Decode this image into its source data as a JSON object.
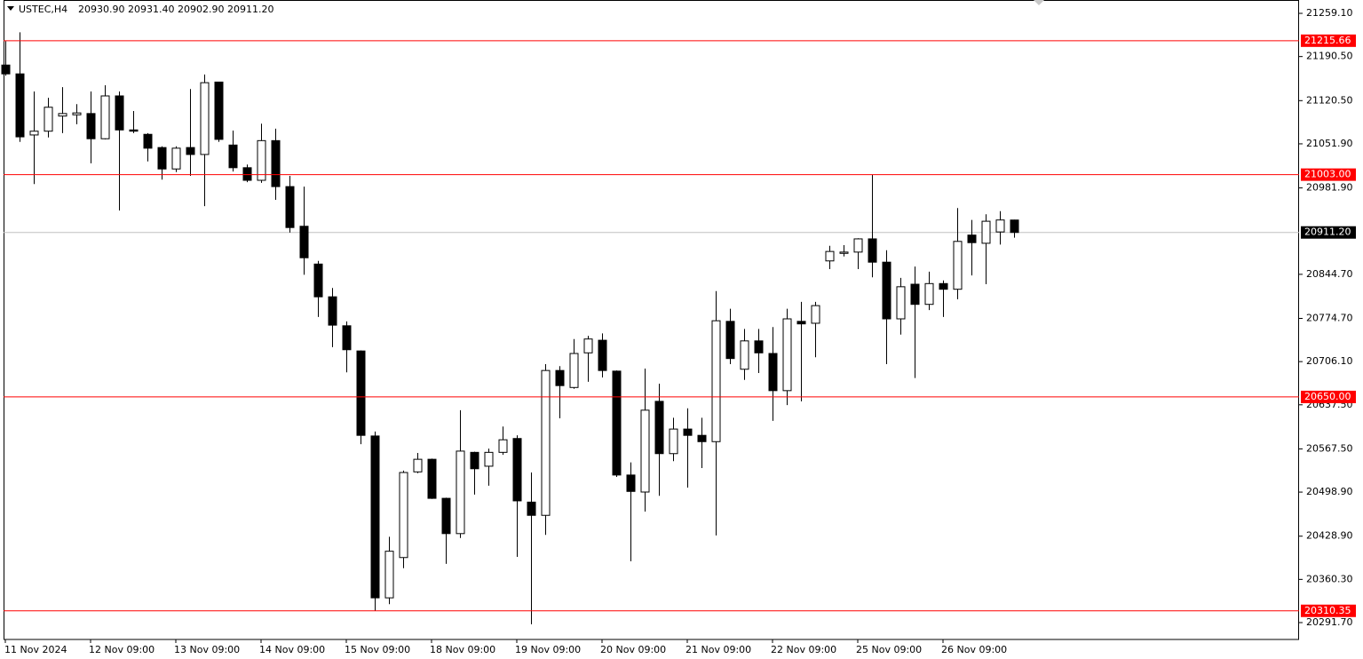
{
  "chart_data": {
    "type": "candlestick",
    "header": {
      "symbol": "USTEC,H4",
      "values": [
        {
          "value": 20930.9,
          "label": "20930.90"
        },
        {
          "value": 20931.4,
          "label": "20931.40"
        },
        {
          "value": 20902.9,
          "label": "20902.90"
        },
        {
          "value": 20911.2,
          "label": "20911.20"
        }
      ]
    },
    "categories": [
      "11 Nov 2024",
      null,
      null,
      null,
      null,
      null,
      "12 Nov 09:00",
      null,
      null,
      null,
      null,
      null,
      "13 Nov 09:00",
      null,
      null,
      null,
      null,
      null,
      "14 Nov 09:00",
      null,
      null,
      null,
      null,
      null,
      "15 Nov 09:00",
      null,
      null,
      null,
      null,
      null,
      "18 Nov 09:00",
      null,
      null,
      null,
      null,
      null,
      "19 Nov 09:00",
      null,
      null,
      null,
      null,
      null,
      "20 Nov 09:00",
      null,
      null,
      null,
      null,
      null,
      "21 Nov 09:00",
      null,
      null,
      null,
      null,
      null,
      "22 Nov 09:00",
      null,
      null,
      null,
      null,
      null,
      "25 Nov 09:00",
      null,
      null,
      null,
      null,
      null,
      "26 Nov 09:00",
      null,
      null,
      null,
      null,
      null
    ],
    "open": [
      21177,
      21163,
      21066,
      21072,
      21096,
      21098,
      21100,
      21060,
      21128,
      21074,
      21067,
      21046,
      21012,
      21046,
      21035,
      21150,
      21050,
      21014,
      20994,
      21057,
      20984,
      20921,
      20861,
      20809,
      20763,
      20723,
      20588,
      20331,
      20395,
      20531,
      20551,
      20489,
      20433,
      20562,
      20540,
      20562,
      20584,
      20483,
      20462,
      20692,
      20665,
      20720,
      20740,
      20691,
      20526,
      20499,
      20643,
      20560,
      20599,
      20589,
      20579,
      20770,
      20694,
      20739,
      20719,
      20660,
      20770,
      20767,
      20866,
      20878,
      20880,
      20901,
      20864,
      20774,
      20829,
      20797,
      20830,
      20821,
      20907,
      20894,
      20912,
      20930.9
    ],
    "high": [
      21215,
      21229,
      21135,
      21125,
      21142,
      21115,
      21135,
      21145,
      21135,
      21104,
      21069,
      21048,
      21048,
      21139,
      21162,
      21150,
      21073,
      21019,
      21084,
      21076,
      21001,
      20984,
      20866,
      20823,
      20770,
      20724,
      20595,
      20428,
      20533,
      20561,
      20552,
      20490,
      20629,
      20563,
      20568,
      20603,
      20589,
      20530,
      20702,
      20699,
      20742,
      20747,
      20751,
      20692,
      20546,
      20695,
      20671,
      20617,
      20632,
      20617,
      20818,
      20790,
      20758,
      20758,
      20761,
      20790,
      20801,
      20801,
      20890,
      20891,
      20902,
      21003,
      20883,
      20839,
      20857,
      20849,
      20835,
      20950,
      20931,
      20940,
      20945,
      20931.4
    ],
    "low": [
      21160,
      21055,
      20988,
      21062,
      21069,
      21083,
      21021,
      21059,
      20946,
      21069,
      21024,
      20995,
      21007,
      21001,
      20953,
      21055,
      21008,
      20991,
      20990,
      20963,
      20911,
      20844,
      20777,
      20729,
      20689,
      20575,
      20310,
      20321,
      20378,
      20529,
      20488,
      20385,
      20426,
      20495,
      20509,
      20558,
      20396,
      20289,
      20431,
      20616,
      20663,
      20674,
      20681,
      20523,
      20389,
      20468,
      20493,
      20548,
      20506,
      20537,
      20430,
      20702,
      20677,
      20688,
      20612,
      20637,
      20643,
      20713,
      20853,
      20873,
      20853,
      20840,
      20702,
      20749,
      20680,
      20788,
      20777,
      20805,
      20843,
      20829,
      20892,
      20902.9
    ],
    "close": [
      21163,
      21063,
      21072,
      21110,
      21100,
      21101,
      21060,
      21128,
      21074,
      21072,
      21045,
      21012,
      21045,
      21035,
      21149,
      21059,
      21014,
      20994,
      21057,
      20984,
      20919,
      20871,
      20809,
      20764,
      20725,
      20589,
      20331,
      20405,
      20530,
      20551,
      20489,
      20433,
      20564,
      20536,
      20562,
      20582,
      20485,
      20462,
      20692,
      20668,
      20719,
      20742,
      20692,
      20526,
      20500,
      20629,
      20560,
      20599,
      20589,
      20579,
      20771,
      20711,
      20739,
      20720,
      20660,
      20774,
      20766,
      20795,
      20881,
      20880,
      20901,
      20864,
      20774,
      20825,
      20797,
      20830,
      20821,
      20897,
      20895,
      20929,
      20931,
      20911.2
    ],
    "up_color": "#ffffff",
    "down_color": "#000000",
    "ylim": [
      20264.9,
      21280.3
    ],
    "yticks": [
      {
        "value": 21259.1,
        "label": "21259.10"
      },
      {
        "value": 21190.5,
        "label": "21190.50"
      },
      {
        "value": 21120.5,
        "label": "21120.50"
      },
      {
        "value": 21051.9,
        "label": "21051.90"
      },
      {
        "value": 20981.9,
        "label": "20981.90"
      },
      {
        "value": 20844.7,
        "label": "20844.70"
      },
      {
        "value": 20774.7,
        "label": "20774.70"
      },
      {
        "value": 20706.1,
        "label": "20706.10"
      },
      {
        "value": 20637.5,
        "label": "20637.50"
      },
      {
        "value": 20567.5,
        "label": "20567.50"
      },
      {
        "value": 20498.9,
        "label": "20498.90"
      },
      {
        "value": 20428.9,
        "label": "20428.90"
      },
      {
        "value": 20360.3,
        "label": "20360.30"
      },
      {
        "value": 20291.7,
        "label": "20291.70"
      }
    ],
    "levels": [
      21215.66,
      {
        "value": 21003,
        "label": "21003.00"
      },
      {
        "value": 20650,
        "label": "20650.00"
      },
      20310.35
    ],
    "level_color": "#ff0000",
    "current_price": {
      "value": 20911.2,
      "label": "20911.20"
    },
    "current_price_color": "#c0c0c0"
  }
}
